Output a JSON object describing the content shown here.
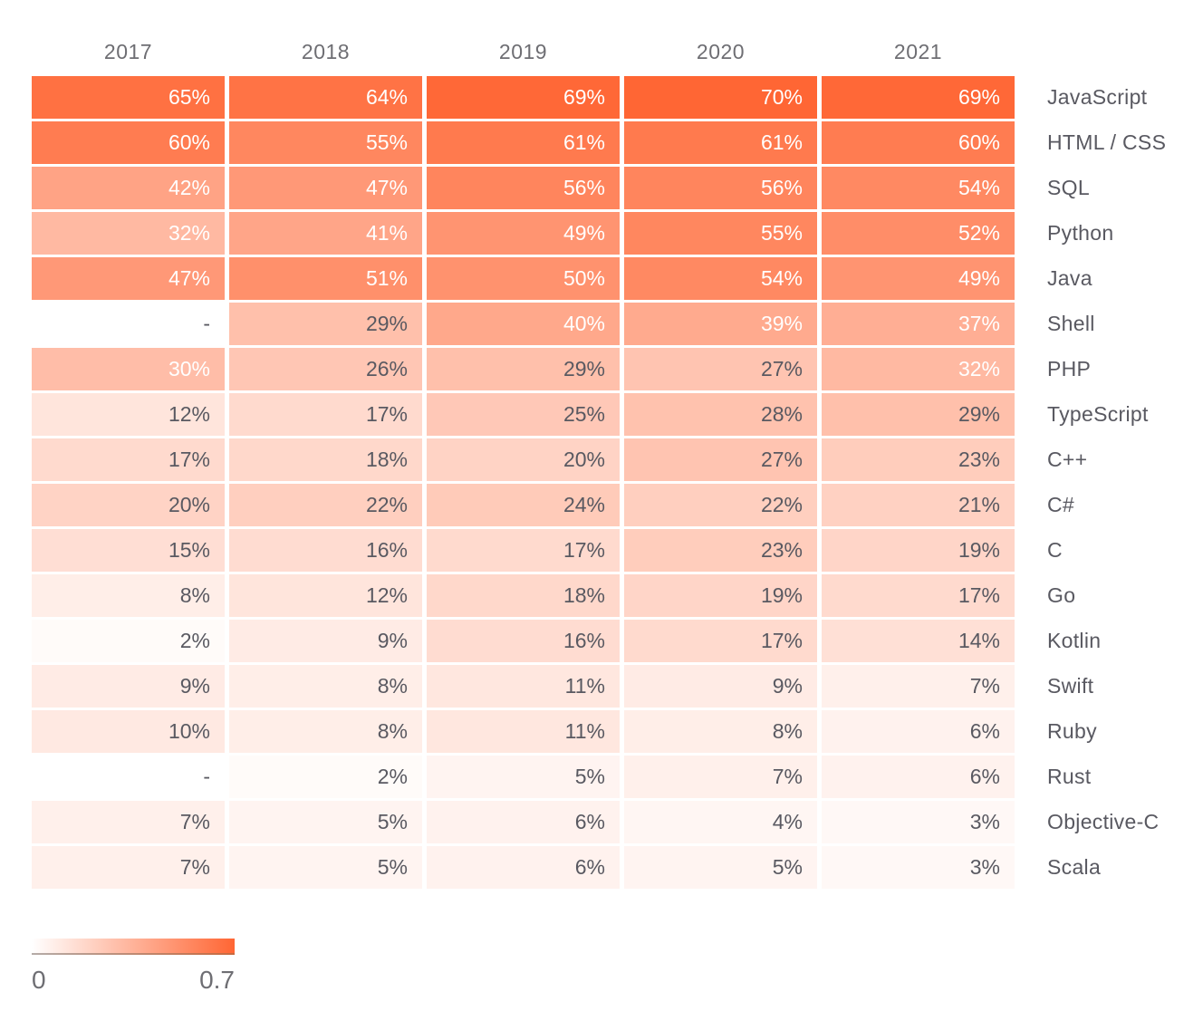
{
  "chart_data": {
    "type": "heatmap",
    "columns": [
      "2017",
      "2018",
      "2019",
      "2020",
      "2021"
    ],
    "rows": [
      {
        "label": "JavaScript",
        "values": [
          65,
          64,
          69,
          70,
          69
        ]
      },
      {
        "label": "HTML / CSS",
        "values": [
          60,
          55,
          61,
          61,
          60
        ]
      },
      {
        "label": "SQL",
        "values": [
          42,
          47,
          56,
          56,
          54
        ]
      },
      {
        "label": "Python",
        "values": [
          32,
          41,
          49,
          55,
          52
        ]
      },
      {
        "label": "Java",
        "values": [
          47,
          51,
          50,
          54,
          49
        ]
      },
      {
        "label": "Shell",
        "values": [
          null,
          29,
          40,
          39,
          37
        ]
      },
      {
        "label": "PHP",
        "values": [
          30,
          26,
          29,
          27,
          32
        ]
      },
      {
        "label": "TypeScript",
        "values": [
          12,
          17,
          25,
          28,
          29
        ]
      },
      {
        "label": "C++",
        "values": [
          17,
          18,
          20,
          27,
          23
        ]
      },
      {
        "label": "C#",
        "values": [
          20,
          22,
          24,
          22,
          21
        ]
      },
      {
        "label": "C",
        "values": [
          15,
          16,
          17,
          23,
          19
        ]
      },
      {
        "label": "Go",
        "values": [
          8,
          12,
          18,
          19,
          17
        ]
      },
      {
        "label": "Kotlin",
        "values": [
          2,
          9,
          16,
          17,
          14
        ]
      },
      {
        "label": "Swift",
        "values": [
          9,
          8,
          11,
          9,
          7
        ]
      },
      {
        "label": "Ruby",
        "values": [
          10,
          8,
          11,
          8,
          6
        ]
      },
      {
        "label": "Rust",
        "values": [
          null,
          2,
          5,
          7,
          6
        ]
      },
      {
        "label": "Objective-C",
        "values": [
          7,
          5,
          6,
          4,
          3
        ]
      },
      {
        "label": "Scala",
        "values": [
          7,
          5,
          6,
          5,
          3
        ]
      }
    ],
    "value_suffix": "%",
    "missing_marker": "-",
    "text_threshold": 30,
    "scale": {
      "min": 0,
      "max": 0.7
    },
    "legend": {
      "min_label": "0",
      "max_label": "0.7"
    },
    "colors": {
      "min": "#FFFFFF",
      "max": "#FF6634",
      "light_text": "#FFFFFF",
      "dark_text": "#595961",
      "header_text": "#6E6E73",
      "legend_line_left": "#B5ACA8",
      "legend_line_right": "#C8693F"
    },
    "layout": {
      "grid": "off",
      "legend_position": "bottom-left"
    }
  }
}
